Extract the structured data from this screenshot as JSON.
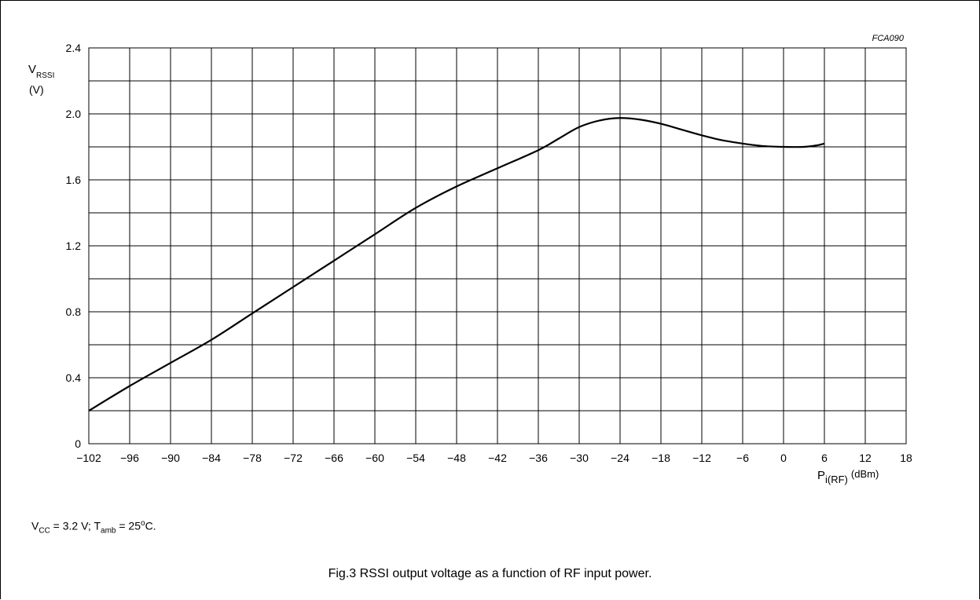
{
  "chart_data": {
    "type": "line",
    "figure_id": "FCA090",
    "caption": "Fig.3  RSSI output voltage as a function of RF input power.",
    "conditions": {
      "vcc_symbol": "V",
      "vcc_sub": "CC",
      "vcc_value": " = 3.2 V; ",
      "tamb_symbol": "T",
      "tamb_sub": "amb",
      "tamb_value": " = 25",
      "degree": "o",
      "tamb_unit": "C."
    },
    "ylabel": {
      "symbol": "V",
      "sub": "RSSI",
      "unit": "(V)"
    },
    "xlabel": {
      "symbol": "P",
      "sub": "i(RF)",
      "unit": "(dBm)"
    },
    "xlim": [
      -102,
      18
    ],
    "ylim": [
      0,
      2.4
    ],
    "x_major_ticks": [
      -102,
      -96,
      -90,
      -84,
      -78,
      -72,
      -66,
      -60,
      -54,
      -48,
      -42,
      -36,
      -30,
      -24,
      -18,
      -12,
      -6,
      0,
      6,
      12,
      18
    ],
    "x_tick_labels": [
      "−102",
      "−96",
      "−90",
      "−84",
      "−78",
      "−72",
      "−66",
      "−60",
      "−54",
      "−48",
      "−42",
      "−36",
      "−30",
      "−24",
      "−18",
      "−12",
      "−6",
      "0",
      "6",
      "12",
      "18"
    ],
    "y_major_ticks": [
      0,
      0.4,
      0.8,
      1.2,
      1.6,
      2.0,
      2.4
    ],
    "y_tick_labels": [
      "0",
      "0.4",
      "0.8",
      "1.2",
      "1.6",
      "2.0",
      "2.4"
    ],
    "y_minor_ticks": [
      0.2,
      0.6,
      1.0,
      1.4,
      1.8,
      2.2
    ],
    "grid": true,
    "series": [
      {
        "x": [
          -102,
          -96,
          -90,
          -84,
          -78,
          -72,
          -66,
          -60,
          -54,
          -48,
          -42,
          -36,
          -33,
          -30,
          -27,
          -24,
          -21,
          -18,
          -15,
          -12,
          -9,
          -6,
          -3,
          0,
          3,
          5,
          6
        ],
        "y": [
          0.2,
          0.35,
          0.49,
          0.63,
          0.79,
          0.95,
          1.11,
          1.27,
          1.43,
          1.56,
          1.67,
          1.78,
          1.85,
          1.92,
          1.96,
          1.975,
          1.965,
          1.94,
          1.905,
          1.87,
          1.84,
          1.82,
          1.805,
          1.8,
          1.8,
          1.81,
          1.82
        ]
      }
    ]
  }
}
